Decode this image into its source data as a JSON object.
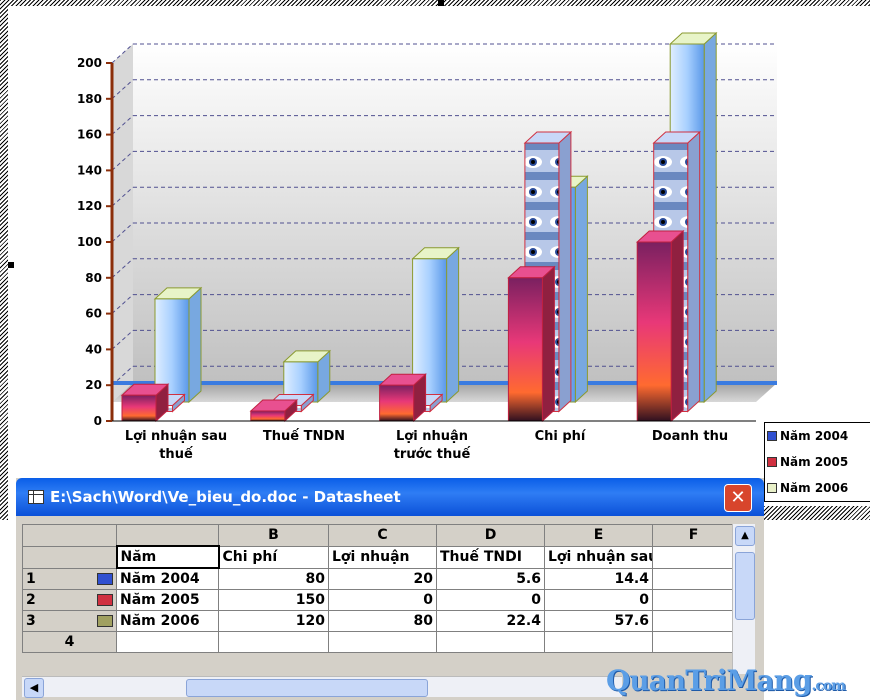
{
  "chart_data": {
    "type": "bar",
    "categories": [
      "Lợi nhuận sau thuế",
      "Thuế TNDN",
      "Lợi nhuận trước thuế",
      "Chi phí",
      "Doanh thu"
    ],
    "series": [
      {
        "name": "Năm 2004",
        "values": [
          14.4,
          5.6,
          20,
          80,
          100
        ]
      },
      {
        "name": "Năm 2005",
        "values": [
          0,
          0,
          0,
          150,
          150
        ]
      },
      {
        "name": "Năm 2006",
        "values": [
          57.6,
          22.4,
          80,
          120,
          200
        ]
      }
    ],
    "yticks": [
      "0",
      "20",
      "40",
      "60",
      "80",
      "100",
      "120",
      "140",
      "160",
      "180",
      "200"
    ],
    "ylim": [
      0,
      200
    ],
    "grid": true,
    "legend_position": "right",
    "colors": {
      "s2004": "#e0307a",
      "s2005": "#4a7fd0",
      "s2006": "#a8d4f8",
      "axis": "#8b2e0a",
      "floor_line": "#3a7be0"
    }
  },
  "category_labels": [
    {
      "line1": "Lợi nhuận sau",
      "line2": "thuế"
    },
    {
      "line1": "Thuế TNDN",
      "line2": ""
    },
    {
      "line1": "Lợi nhuận",
      "line2": "trước thuế"
    },
    {
      "line1": "Chi phí",
      "line2": ""
    },
    {
      "line1": "Doanh thu",
      "line2": ""
    }
  ],
  "legend": [
    {
      "label": "Năm 2004",
      "color": "#e0307a"
    },
    {
      "label": "Năm 2005",
      "color": "#d03040"
    },
    {
      "label": "Năm 2006",
      "color": "#e8f0c8"
    }
  ],
  "window": {
    "title": "E:\\Sach\\Word\\Ve_bieu_do.doc - Datasheet",
    "close": "✕",
    "columns": [
      "",
      "",
      "B",
      "C",
      "D",
      "E",
      "F"
    ],
    "header_row": [
      "Năm",
      "Chi phí",
      "Lợi nhuận",
      "Thuế TNDI",
      "Lợi nhuận sau thu",
      ""
    ],
    "rows": [
      {
        "num": "1",
        "year": "Năm 2004",
        "cells": [
          "80",
          "20",
          "5.6",
          "14.4",
          ""
        ],
        "icon_color": "#3050d0"
      },
      {
        "num": "2",
        "year": "Năm 2005",
        "cells": [
          "150",
          "0",
          "0",
          "0",
          ""
        ],
        "icon_color": "#d03040"
      },
      {
        "num": "3",
        "year": "Năm 2006",
        "cells": [
          "120",
          "80",
          "22.4",
          "57.6",
          ""
        ],
        "icon_color": "#a0a060"
      },
      {
        "num": "4",
        "year": "",
        "cells": [
          "",
          "",
          "",
          "",
          ""
        ],
        "icon_color": ""
      }
    ]
  },
  "watermark": {
    "main": "QuanTriMang",
    "domain": ".com"
  }
}
